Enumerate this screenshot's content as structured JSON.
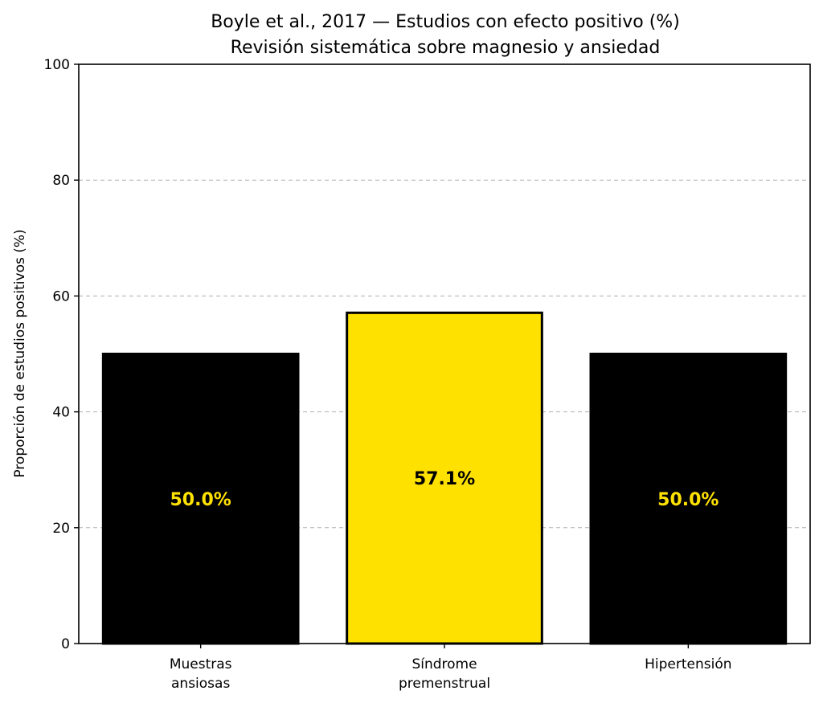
{
  "chart_data": {
    "type": "bar",
    "title": "Boyle et al., 2017 — Estudios con efecto positivo (%)",
    "subtitle": "Revisión sistemática sobre magnesio y ansiedad",
    "xlabel": "",
    "ylabel": "Proporción de estudios positivos (%)",
    "ylim": [
      0,
      100
    ],
    "yticks": [
      0,
      20,
      40,
      60,
      80,
      100
    ],
    "grid": "horizontal dashed",
    "categories": [
      [
        "Muestras",
        "ansiosas"
      ],
      [
        "Síndrome",
        "premenstrual"
      ],
      [
        "Hipertensión"
      ]
    ],
    "values": [
      50.0,
      57.1,
      50.0
    ],
    "value_labels": [
      "50.0%",
      "57.1%",
      "50.0%"
    ],
    "bar_colors": [
      "#000000",
      "#FFE100",
      "#000000"
    ],
    "label_colors": [
      "#FFE100",
      "#000000",
      "#FFE100"
    ],
    "bar_edge_color": "#000000"
  }
}
